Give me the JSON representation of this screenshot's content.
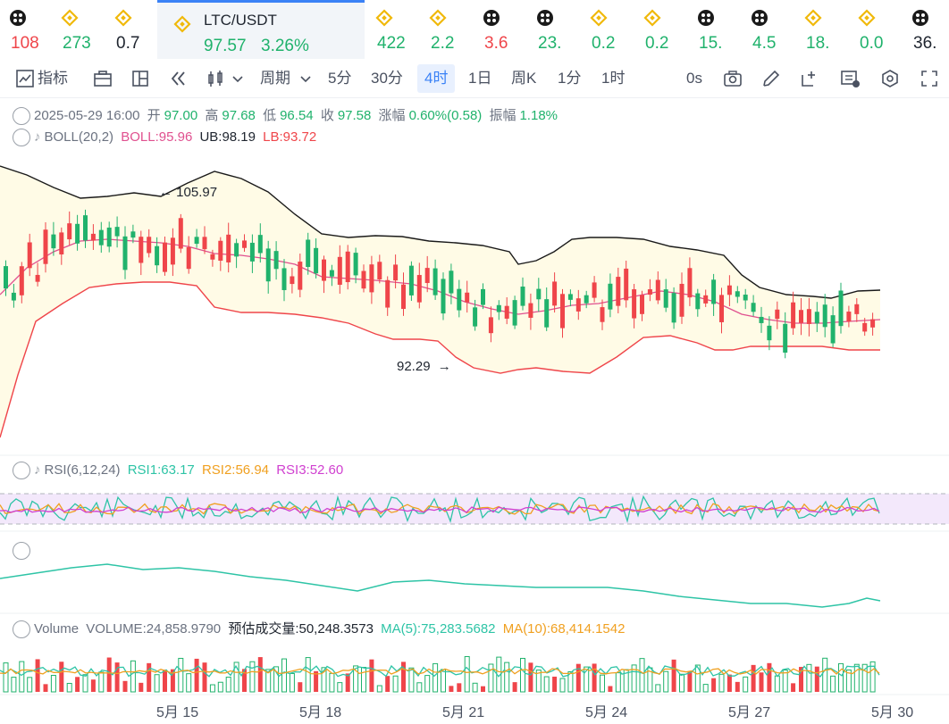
{
  "ticker": [
    {
      "value": "108",
      "color": "dn",
      "icon": "crypto-coin-icon"
    },
    {
      "value": "273",
      "color": "up",
      "icon": "binance-coin-icon"
    },
    {
      "value": "0.7",
      "color": "nu",
      "icon": "binance-coin-icon"
    },
    {
      "active": true,
      "pair": "LTC/USDT",
      "price": "97.57",
      "change": "3.26%",
      "icon": "binance-coin-icon"
    },
    {
      "value": "422",
      "color": "up",
      "icon": "binance-coin-icon"
    },
    {
      "value": "2.2",
      "color": "up",
      "icon": "binance-coin-icon"
    },
    {
      "value": "3.6",
      "color": "dn",
      "icon": "crypto-coin-icon"
    },
    {
      "value": "23.",
      "color": "up",
      "icon": "crypto-coin-icon"
    },
    {
      "value": "0.2",
      "color": "up",
      "icon": "binance-coin-icon"
    },
    {
      "value": "0.2",
      "color": "up",
      "icon": "binance-coin-icon"
    },
    {
      "value": "15.",
      "color": "up",
      "icon": "crypto-coin-icon"
    },
    {
      "value": "4.5",
      "color": "up",
      "icon": "crypto-coin-icon"
    },
    {
      "value": "18.",
      "color": "up",
      "icon": "binance-coin-icon"
    },
    {
      "value": "0.0",
      "color": "up",
      "icon": "binance-coin-icon"
    },
    {
      "value": "36.",
      "color": "nu",
      "icon": "crypto-coin-icon"
    }
  ],
  "toolbar": {
    "indicators": "指标",
    "period": "周期",
    "intervals": [
      "5分",
      "30分",
      "4时",
      "1日",
      "周K",
      "1分",
      "1时"
    ],
    "selected_interval": "4时",
    "countdown": "0s"
  },
  "ohlc": {
    "datetime": "2025-05-29 16:00",
    "open_label": "开",
    "open": "97.00",
    "high_label": "高",
    "high": "97.68",
    "low_label": "低",
    "low": "96.54",
    "close_label": "收",
    "close": "97.58",
    "change_label": "涨幅",
    "change": "0.60%(0.58)",
    "amplitude_label": "振幅",
    "amplitude": "1.18%"
  },
  "boll": {
    "name": "BOLL(20,2)",
    "boll": "BOLL:95.96",
    "ub": "UB:98.19",
    "lb": "LB:93.72"
  },
  "annotations": {
    "high": "105.97",
    "low": "92.29"
  },
  "rsi": {
    "name": "RSI(6,12,24)",
    "rsi1": "RSI1:63.17",
    "rsi2": "RSI2:56.94",
    "rsi3": "RSI3:52.60"
  },
  "volume": {
    "name": "Volume",
    "vol": "VOLUME:24,858.9790",
    "est": "预估成交量:50,248.3573",
    "ma5": "MA(5):75,283.5682",
    "ma10": "MA(10):68,414.1542"
  },
  "x_axis": [
    "5月 15",
    "5月 18",
    "5月 21",
    "5月 24",
    "5月 27",
    "5月 30"
  ],
  "colors": {
    "up": "#20b26c",
    "down": "#ef454a",
    "accent": "#3b82f6",
    "boll_mid": "#e0508f",
    "rsi1": "#2ec4a6",
    "rsi2": "#f0a020",
    "rsi3": "#d040d0"
  }
}
